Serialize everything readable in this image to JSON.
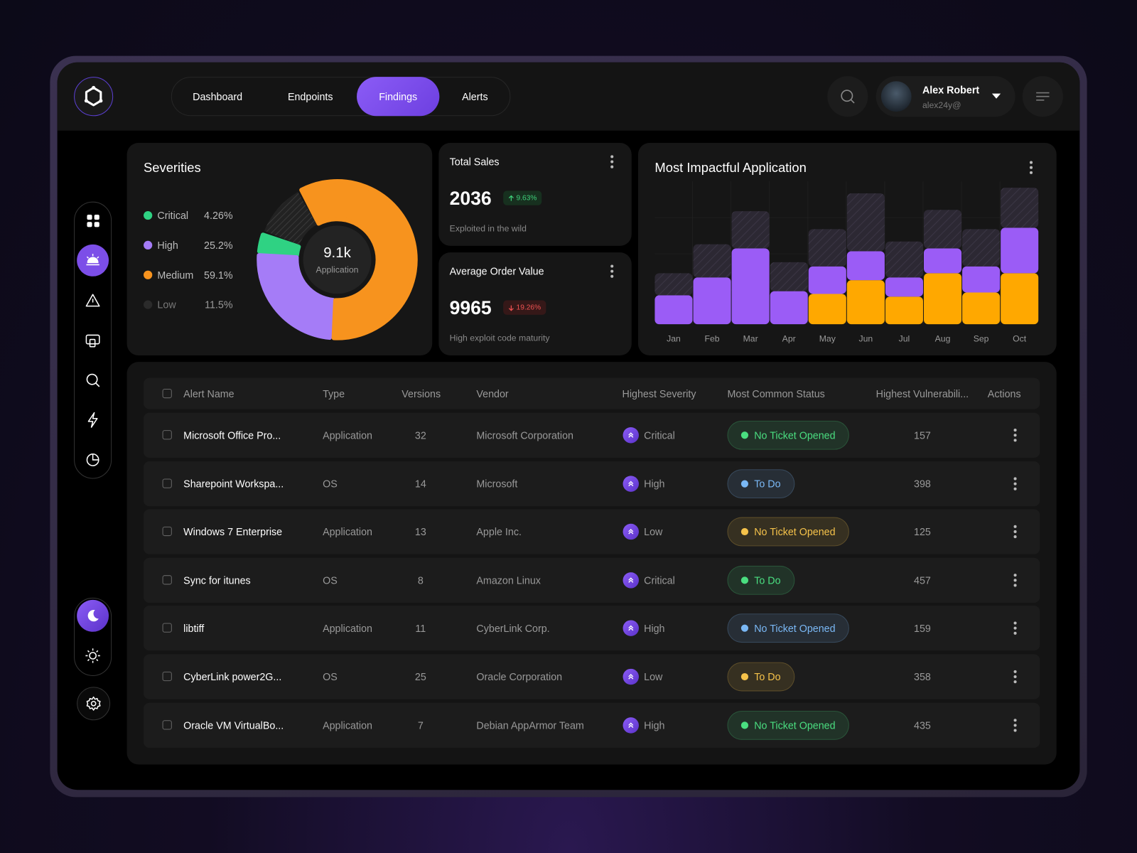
{
  "header": {
    "nav": [
      "Dashboard",
      "Endpoints",
      "Findings",
      "Alerts"
    ],
    "user": {
      "name": "Alex Robert",
      "email": "alex24y@"
    }
  },
  "severities": {
    "type": "pie",
    "title": "Severities",
    "center_value": "9.1k",
    "center_label": "Application",
    "categories": [
      "Critical",
      "High",
      "Medium",
      "Low"
    ],
    "values": [
      4.26,
      25.2,
      59.1,
      11.5
    ],
    "value_labels": [
      "4.26%",
      "25.2%",
      "59.1%",
      "11.5%"
    ],
    "colors": [
      "#2fd283",
      "#a57cf7",
      "#f7931e",
      "#2b2b2b"
    ]
  },
  "cards": [
    {
      "title": "Total Sales",
      "value": 2036,
      "change": "9.63%",
      "direction": "up",
      "note": "Exploited in the wild"
    },
    {
      "title": "Average Order Value",
      "value": 9965,
      "change": "19.26%",
      "direction": "down",
      "note": "High exploit code maturity"
    }
  ],
  "impact": {
    "type": "bar",
    "title": "Most Impactful Application",
    "categories": [
      "Jan",
      "Feb",
      "Mar",
      "Apr",
      "May",
      "Jun",
      "Jul",
      "Aug",
      "Sep",
      "Oct"
    ],
    "stacked": true,
    "ylim": [
      0,
      100
    ],
    "series": [
      {
        "color": "#ffa800",
        "values": [
          0,
          0,
          0,
          0,
          22,
          32,
          20,
          37,
          23,
          37
        ]
      },
      {
        "color": "#9b5cf6",
        "values": [
          21,
          34,
          55,
          24,
          20,
          21,
          14,
          18,
          19,
          33
        ]
      },
      {
        "color": "#2c2833",
        "hatched": true,
        "values": [
          16,
          24,
          27,
          21,
          27,
          42,
          26,
          28,
          27,
          29
        ]
      }
    ]
  },
  "table": {
    "columns": [
      "Alert Name",
      "Type",
      "Versions",
      "Vendor",
      "Highest Severity",
      "Most Common Status",
      "Highest Vulnerabili...",
      "Actions"
    ],
    "rows": [
      [
        "Microsoft Office Pro...",
        "Application",
        32,
        "Microsoft Corporation",
        "Critical",
        "No Ticket Opened",
        157
      ],
      [
        "Sharepoint Workspa...",
        "OS",
        14,
        "Microsoft",
        "High",
        "To Do",
        398
      ],
      [
        "Windows 7 Enterprise",
        "Application",
        13,
        "Apple Inc.",
        "Low",
        "No Ticket Opened",
        125
      ],
      [
        "Sync for itunes",
        "OS",
        8,
        "Amazon Linux",
        "Critical",
        "To Do",
        457
      ],
      [
        "libtiff",
        "Application",
        11,
        "CyberLink Corp.",
        "High",
        "No Ticket Opened",
        159
      ],
      [
        "CyberLink power2G...",
        "OS",
        25,
        "Oracle Corporation",
        "Low",
        "To Do",
        358
      ],
      [
        "Oracle VM VirtualBo...",
        "Application",
        7,
        "Debian AppArmor Team",
        "High",
        "No Ticket Opened",
        435
      ]
    ],
    "status_colors": [
      "#4ade80",
      "#7ab8f5",
      "#f5c24a",
      "#4ade80",
      "#7ab8f5",
      "#f5c24a",
      "#4ade80"
    ]
  }
}
